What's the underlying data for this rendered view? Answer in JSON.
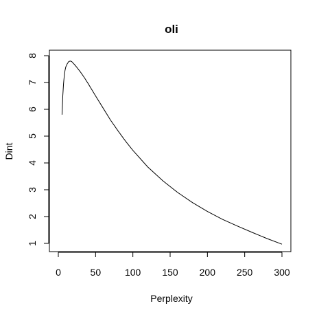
{
  "chart_data": {
    "type": "line",
    "title": "oli",
    "xlabel": "Perplexity",
    "ylabel": "Dint",
    "xlim": [
      0,
      300
    ],
    "ylim": [
      1,
      8
    ],
    "xticks": [
      0,
      50,
      100,
      150,
      200,
      250,
      300
    ],
    "yticks": [
      1,
      2,
      3,
      4,
      5,
      6,
      7,
      8
    ],
    "grid": false,
    "series": [
      {
        "x": [
          5,
          6,
          7,
          8,
          9,
          10,
          12,
          14,
          16,
          18,
          20,
          22,
          25,
          30,
          35,
          40,
          50,
          60,
          70,
          80,
          90,
          100,
          120,
          140,
          160,
          180,
          200,
          220,
          240,
          260,
          280,
          300
        ],
        "y": [
          5.8,
          6.5,
          6.95,
          7.25,
          7.45,
          7.58,
          7.7,
          7.78,
          7.8,
          7.78,
          7.72,
          7.66,
          7.56,
          7.38,
          7.18,
          6.96,
          6.5,
          6.05,
          5.6,
          5.2,
          4.82,
          4.47,
          3.85,
          3.34,
          2.9,
          2.52,
          2.19,
          1.9,
          1.65,
          1.41,
          1.18,
          0.97
        ],
        "color": "#000000"
      }
    ]
  }
}
